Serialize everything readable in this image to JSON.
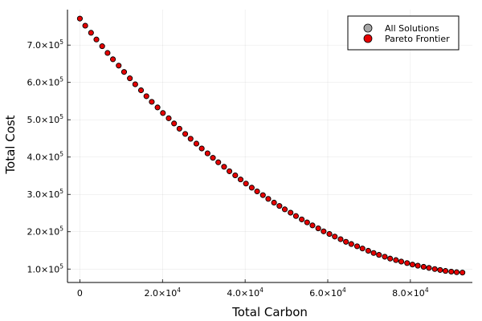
{
  "chart_data": {
    "type": "scatter",
    "xlabel": "Total Carbon",
    "ylabel": "Total Cost",
    "xlim": [
      -3000,
      95000
    ],
    "ylim": [
      64000,
      795000
    ],
    "grid": true,
    "legend_position": "top-right",
    "x_ticks": [
      {
        "value": 0,
        "mantissa": "0",
        "exponent": ""
      },
      {
        "value": 20000,
        "mantissa": "2.0×10",
        "exponent": "4"
      },
      {
        "value": 40000,
        "mantissa": "4.0×10",
        "exponent": "4"
      },
      {
        "value": 60000,
        "mantissa": "6.0×10",
        "exponent": "4"
      },
      {
        "value": 80000,
        "mantissa": "8.0×10",
        "exponent": "4"
      }
    ],
    "y_ticks": [
      {
        "value": 100000,
        "mantissa": "1.0×10",
        "exponent": "5"
      },
      {
        "value": 200000,
        "mantissa": "2.0×10",
        "exponent": "5"
      },
      {
        "value": 300000,
        "mantissa": "3.0×10",
        "exponent": "5"
      },
      {
        "value": 400000,
        "mantissa": "4.0×10",
        "exponent": "5"
      },
      {
        "value": 500000,
        "mantissa": "5.0×10",
        "exponent": "5"
      },
      {
        "value": 600000,
        "mantissa": "6.0×10",
        "exponent": "5"
      },
      {
        "value": 700000,
        "mantissa": "7.0×10",
        "exponent": "5"
      }
    ],
    "series": [
      {
        "name": "All Solutions",
        "color": "#a6a6a6",
        "points": [
          [
            0,
            771000
          ],
          [
            1300,
            752000
          ],
          [
            2700,
            733000
          ],
          [
            4000,
            715000
          ],
          [
            5400,
            697000
          ],
          [
            6700,
            679000
          ],
          [
            8000,
            662000
          ],
          [
            9400,
            645000
          ],
          [
            10700,
            628000
          ],
          [
            12100,
            611000
          ],
          [
            13400,
            595000
          ],
          [
            14800,
            579000
          ],
          [
            16100,
            563000
          ],
          [
            17400,
            548000
          ],
          [
            18800,
            533000
          ],
          [
            20100,
            518000
          ],
          [
            21500,
            504000
          ],
          [
            22800,
            490000
          ],
          [
            24100,
            476000
          ],
          [
            25500,
            462000
          ],
          [
            26800,
            449000
          ],
          [
            28200,
            436000
          ],
          [
            29500,
            423000
          ],
          [
            30900,
            410000
          ],
          [
            32200,
            398000
          ],
          [
            33500,
            386000
          ],
          [
            34900,
            374000
          ],
          [
            36200,
            362000
          ],
          [
            37600,
            351000
          ],
          [
            38900,
            340000
          ],
          [
            40200,
            329000
          ],
          [
            41600,
            318000
          ],
          [
            42900,
            308000
          ],
          [
            44300,
            298000
          ],
          [
            45600,
            288000
          ],
          [
            47000,
            278000
          ],
          [
            48300,
            269000
          ],
          [
            49600,
            260000
          ],
          [
            51000,
            251000
          ],
          [
            52300,
            242000
          ],
          [
            53700,
            233000
          ],
          [
            55000,
            225000
          ],
          [
            56300,
            217000
          ],
          [
            57700,
            209000
          ],
          [
            59000,
            201000
          ],
          [
            60400,
            194000
          ],
          [
            61700,
            187000
          ],
          [
            63100,
            180000
          ],
          [
            64400,
            173000
          ],
          [
            65700,
            167000
          ],
          [
            67100,
            161000
          ],
          [
            68400,
            155000
          ],
          [
            69800,
            149000
          ],
          [
            71100,
            143000
          ],
          [
            72400,
            138000
          ],
          [
            73800,
            133000
          ],
          [
            75100,
            128000
          ],
          [
            76500,
            124000
          ],
          [
            77800,
            120000
          ],
          [
            79200,
            116000
          ],
          [
            80500,
            112000
          ],
          [
            81800,
            109000
          ],
          [
            83200,
            106000
          ],
          [
            84500,
            103000
          ],
          [
            85900,
            100000
          ],
          [
            87200,
            97500
          ],
          [
            88500,
            95000
          ],
          [
            89900,
            93000
          ],
          [
            91200,
            91500
          ],
          [
            92600,
            90500
          ]
        ]
      },
      {
        "name": "Pareto Frontier",
        "color": "#e60000",
        "points": [
          [
            0,
            771000
          ],
          [
            1300,
            752000
          ],
          [
            2700,
            733000
          ],
          [
            4000,
            715000
          ],
          [
            5400,
            697000
          ],
          [
            6700,
            679000
          ],
          [
            8000,
            662000
          ],
          [
            9400,
            645000
          ],
          [
            10700,
            628000
          ],
          [
            12100,
            611000
          ],
          [
            13400,
            595000
          ],
          [
            14800,
            579000
          ],
          [
            16100,
            563000
          ],
          [
            17400,
            548000
          ],
          [
            18800,
            533000
          ],
          [
            20100,
            518000
          ],
          [
            21500,
            504000
          ],
          [
            22800,
            490000
          ],
          [
            24100,
            476000
          ],
          [
            25500,
            462000
          ],
          [
            26800,
            449000
          ],
          [
            28200,
            436000
          ],
          [
            29500,
            423000
          ],
          [
            30900,
            410000
          ],
          [
            32200,
            398000
          ],
          [
            33500,
            386000
          ],
          [
            34900,
            374000
          ],
          [
            36200,
            362000
          ],
          [
            37600,
            351000
          ],
          [
            38900,
            340000
          ],
          [
            40200,
            329000
          ],
          [
            41600,
            318000
          ],
          [
            42900,
            308000
          ],
          [
            44300,
            298000
          ],
          [
            45600,
            288000
          ],
          [
            47000,
            278000
          ],
          [
            48300,
            269000
          ],
          [
            49600,
            260000
          ],
          [
            51000,
            251000
          ],
          [
            52300,
            242000
          ],
          [
            53700,
            233000
          ],
          [
            55000,
            225000
          ],
          [
            56300,
            217000
          ],
          [
            57700,
            209000
          ],
          [
            59000,
            201000
          ],
          [
            60400,
            194000
          ],
          [
            61700,
            187000
          ],
          [
            63100,
            180000
          ],
          [
            64400,
            173000
          ],
          [
            65700,
            167000
          ],
          [
            67100,
            161000
          ],
          [
            68400,
            155000
          ],
          [
            69800,
            149000
          ],
          [
            71100,
            143000
          ],
          [
            72400,
            138000
          ],
          [
            73800,
            133000
          ],
          [
            75100,
            128000
          ],
          [
            76500,
            124000
          ],
          [
            77800,
            120000
          ],
          [
            79200,
            116000
          ],
          [
            80500,
            112000
          ],
          [
            81800,
            109000
          ],
          [
            83200,
            106000
          ],
          [
            84500,
            103000
          ],
          [
            85900,
            100000
          ],
          [
            87200,
            97500
          ],
          [
            88500,
            95000
          ],
          [
            89900,
            93000
          ],
          [
            91200,
            91500
          ],
          [
            92600,
            90500
          ]
        ]
      }
    ]
  }
}
